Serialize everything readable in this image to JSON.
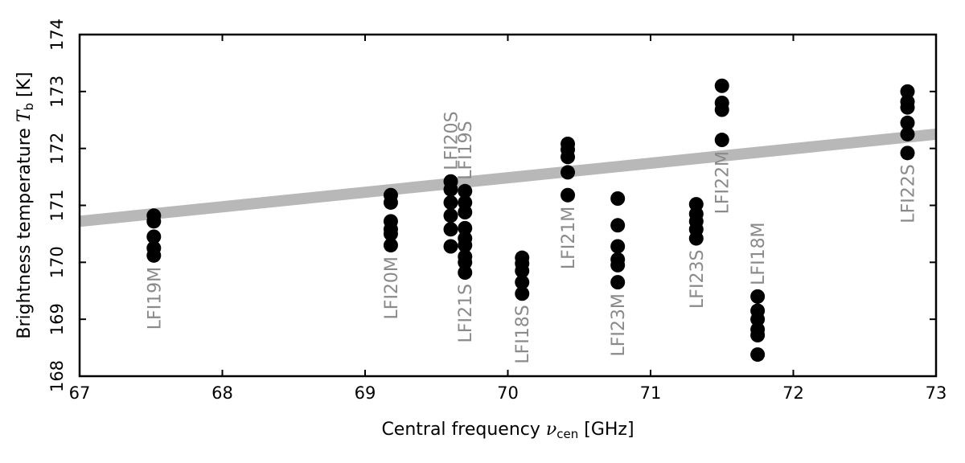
{
  "chart_data": {
    "type": "scatter",
    "xlabel": "Central frequency",
    "xlabel_symbol": "ν",
    "xlabel_sub": "cen",
    "xlabel_unit": "[GHz]",
    "ylabel": "Brightness temperature",
    "ylabel_symbol": "T",
    "ylabel_sub": "b",
    "ylabel_unit": "[K]",
    "xlim": [
      67,
      73
    ],
    "ylim": [
      168,
      174
    ],
    "xticks": [
      67,
      68,
      69,
      70,
      71,
      72,
      73
    ],
    "yticks": [
      168,
      169,
      170,
      171,
      172,
      173,
      174
    ],
    "grid": false,
    "fit_line": {
      "x": [
        67,
        73
      ],
      "y": [
        170.72,
        172.25
      ],
      "color": "#b8b8b8"
    },
    "marker_color": "#000000",
    "label_color": "#8a8a8a",
    "series": [
      {
        "name": "LFI19M",
        "x": 67.52,
        "y": [
          170.82,
          170.72,
          170.45,
          170.25,
          170.12
        ]
      },
      {
        "name": "LFI20M",
        "x": 69.18,
        "y": [
          171.18,
          171.05,
          170.72,
          170.58,
          170.5,
          170.3
        ]
      },
      {
        "name": "LFI20S",
        "x": 69.6,
        "y": [
          171.42,
          171.28,
          171.05,
          170.82,
          170.58,
          170.28
        ]
      },
      {
        "name": "LFI19S",
        "x": 69.7,
        "y": [
          171.25,
          171.05,
          170.88,
          170.6,
          170.42,
          170.3,
          170.1
        ]
      },
      {
        "name": "LFI21S",
        "x": 69.7,
        "y": [
          170.0,
          169.82
        ]
      },
      {
        "name": "LFI18S",
        "x": 70.1,
        "y": [
          170.08,
          169.98,
          169.85,
          169.65,
          169.45
        ]
      },
      {
        "name": "LFI21M",
        "x": 70.42,
        "y": [
          172.08,
          171.98,
          171.85,
          171.58,
          171.18
        ]
      },
      {
        "name": "LFI23M",
        "x": 70.77,
        "y": [
          171.12,
          170.65,
          170.28,
          170.05,
          169.95,
          169.65
        ]
      },
      {
        "name": "LFI23S",
        "x": 71.32,
        "y": [
          171.02,
          170.85,
          170.72,
          170.58,
          170.42
        ]
      },
      {
        "name": "LFI22M",
        "x": 71.5,
        "y": [
          173.1,
          172.8,
          172.68,
          172.15
        ]
      },
      {
        "name": "LFI18M",
        "x": 71.75,
        "y": [
          169.4,
          169.15,
          169.0,
          168.82,
          168.72,
          168.38
        ]
      },
      {
        "name": "LFI22S",
        "x": 72.8,
        "y": [
          173.0,
          172.82,
          172.72,
          172.45,
          172.25,
          171.92
        ]
      }
    ]
  }
}
